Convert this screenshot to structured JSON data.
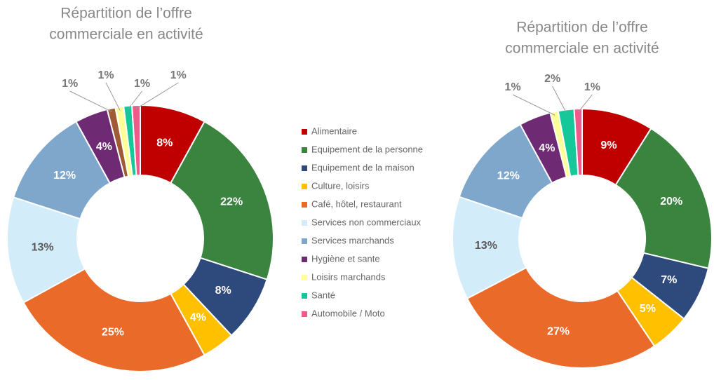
{
  "chart_data": [
    {
      "type": "donut",
      "title": [
        "Répartition de l’offre",
        "commerciale en activité"
      ],
      "categories": [
        "Alimentaire",
        "Equipement de la personne",
        "Equipement de la maison",
        "Culture, loisirs",
        "Café, hôtel, restaurant",
        "Services non commerciaux",
        "Services marchands",
        "Hygiène et sante",
        null,
        "Loisirs marchands",
        "Santé",
        "Automobile / Moto"
      ],
      "values": [
        8,
        22,
        8,
        4,
        25,
        13,
        12,
        4,
        1,
        1,
        1,
        1
      ],
      "value_labels": [
        "8%",
        "22%",
        "8%",
        "4%",
        "25%",
        "13%",
        "12%",
        "4%",
        "1%",
        "1%",
        "1%",
        "1%"
      ],
      "colors": [
        "#c00000",
        "#3a8440",
        "#2e4a7c",
        "#ffc000",
        "#ea6a2a",
        "#d3ecfa",
        "#7fa7cc",
        "#6e2a73",
        "#9e5b35",
        "#ffff99",
        "#14c89a",
        "#ef5a8a"
      ]
    },
    {
      "type": "donut",
      "title": [
        "Répartition de l’offre",
        "commerciale en activité"
      ],
      "categories": [
        "Alimentaire",
        "Equipement de la personne",
        "Equipement de la maison",
        "Culture, loisirs",
        "Café, hôtel, restaurant",
        "Services non commerciaux",
        "Services marchands",
        "Hygiène et sante",
        "Loisirs marchands",
        "Santé",
        "Automobile / Moto"
      ],
      "values": [
        9,
        20,
        7,
        5,
        27,
        13,
        12,
        4,
        1,
        2,
        1
      ],
      "value_labels": [
        "9%",
        "20%",
        "7%",
        "5%",
        "27%",
        "13%",
        "12%",
        "4%",
        "1%",
        "2%",
        "1%"
      ],
      "colors": [
        "#c00000",
        "#3a8440",
        "#2e4a7c",
        "#ffc000",
        "#ea6a2a",
        "#d3ecfa",
        "#7fa7cc",
        "#6e2a73",
        "#ffff99",
        "#14c89a",
        "#ef5a8a"
      ]
    }
  ]
}
